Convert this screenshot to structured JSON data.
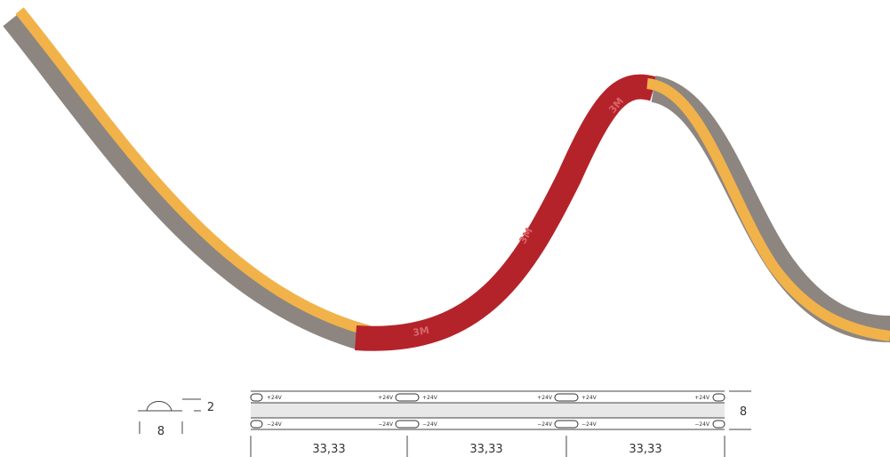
{
  "product_image": {
    "adhesive_text": [
      "3M",
      "3M",
      "3M"
    ]
  },
  "cross_section": {
    "height": "2",
    "width": "8"
  },
  "strip_drawing": {
    "width": "8",
    "top_labels": [
      "+24V",
      "+24V",
      "+24V",
      "+24V",
      "+24V",
      "+24V"
    ],
    "bottom_labels": [
      "−24V",
      "−24V",
      "−24V",
      "−24V",
      "−24V",
      "−24V"
    ],
    "segments": [
      "33,33",
      "33,33",
      "33,33"
    ]
  }
}
